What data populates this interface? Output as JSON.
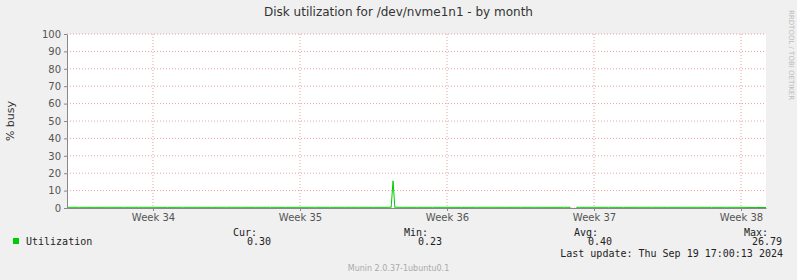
{
  "chart_data": {
    "type": "line",
    "title": "Disk utilization for /dev/nvme1n1 - by month",
    "y_label": "% busy",
    "watermark": "RRDTOOL / TOBI OETIKER",
    "footer": "Last update: Thu Sep 19 17:00:13 2024",
    "credit": "Munin 2.0.37-1ubuntu0.1",
    "grid": true,
    "xlim": [
      33.415,
      38.17
    ],
    "xticks": [
      {
        "value": 34,
        "label": "Week 34"
      },
      {
        "value": 35,
        "label": "Week 35"
      },
      {
        "value": 36,
        "label": "Week 36"
      },
      {
        "value": 37,
        "label": "Week 37"
      },
      {
        "value": 38,
        "label": "Week 38"
      }
    ],
    "ylim": [
      0,
      100
    ],
    "yticks": [
      0,
      10,
      20,
      30,
      40,
      50,
      60,
      70,
      80,
      90,
      100
    ],
    "x": [
      33.42,
      33.5,
      33.6,
      33.7,
      33.8,
      33.9,
      34.0,
      34.1,
      34.2,
      34.3,
      34.4,
      34.5,
      34.6,
      34.7,
      34.8,
      34.9,
      35.0,
      35.1,
      35.2,
      35.3,
      35.4,
      35.5,
      35.6,
      35.62,
      35.633,
      35.645,
      35.7,
      35.8,
      35.9,
      36.0,
      36.1,
      36.2,
      36.3,
      36.4,
      36.5,
      36.6,
      36.7,
      36.8,
      36.84,
      36.85,
      36.88,
      36.9,
      37.0,
      37.1,
      37.2,
      37.3,
      37.4,
      37.5,
      37.6,
      37.7,
      37.8,
      37.9,
      38.0,
      38.1,
      38.17
    ],
    "series": [
      {
        "name": "Utilization",
        "color": "#00cc00",
        "values": [
          0.42,
          0.4,
          0.38,
          0.41,
          0.39,
          0.42,
          0.4,
          0.37,
          0.41,
          0.4,
          0.38,
          0.42,
          0.4,
          0.39,
          0.41,
          0.38,
          0.4,
          0.42,
          0.39,
          0.4,
          0.41,
          0.38,
          0.4,
          0.45,
          15.6,
          0.45,
          0.4,
          0.39,
          0.41,
          0.4,
          0.38,
          0.4,
          0.42,
          0.39,
          0.4,
          0.41,
          0.38,
          0.4,
          0.38,
          null,
          0.39,
          0.4,
          0.41,
          0.4,
          0.38,
          0.4,
          0.42,
          0.39,
          0.4,
          0.41,
          0.38,
          0.4,
          0.39,
          0.3,
          0.3
        ],
        "stats": [
          {
            "name": "Cur:",
            "value": 0.3,
            "label": "0.30"
          },
          {
            "name": "Min:",
            "value": 0.23,
            "label": "0.23"
          },
          {
            "name": "Avg:",
            "value": 0.4,
            "label": "0.40"
          },
          {
            "name": "Max:",
            "value": 26.79,
            "label": "26.79"
          }
        ]
      }
    ]
  }
}
